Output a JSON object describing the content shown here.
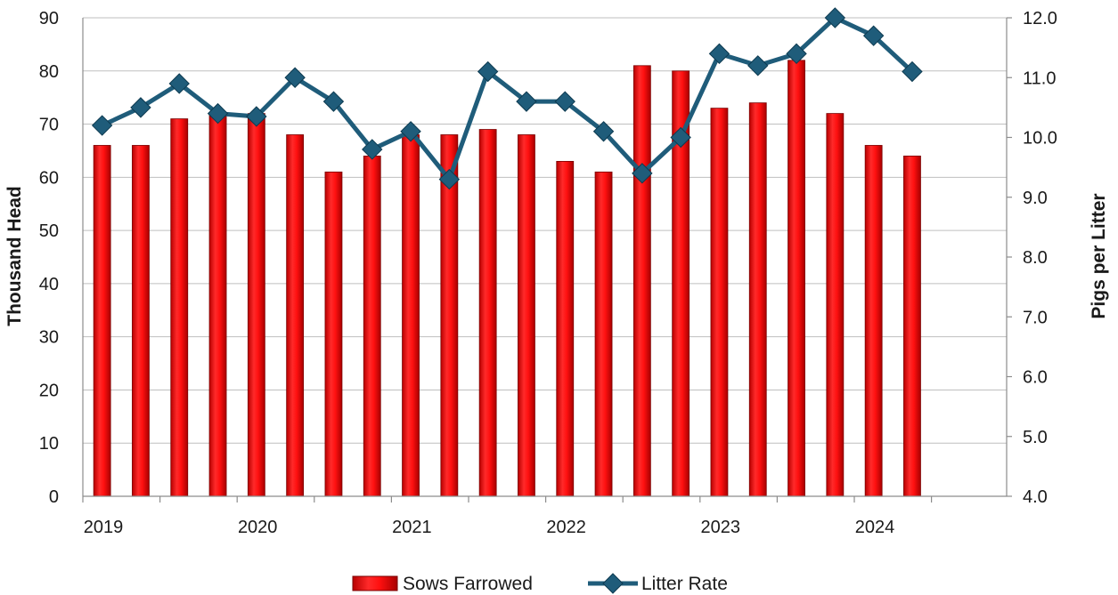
{
  "chart_data": {
    "type": "bar+line",
    "x_tick_labels": [
      "2019",
      "2020",
      "2021",
      "2022",
      "2023",
      "2024"
    ],
    "y_left": {
      "label": "Thousand Head",
      "lim": [
        0,
        90
      ],
      "ticks": [
        "0",
        "10",
        "20",
        "30",
        "40",
        "50",
        "60",
        "70",
        "80",
        "90"
      ]
    },
    "y_right": {
      "label": "Pigs per Litter",
      "lim": [
        4.0,
        12.0
      ],
      "ticks": [
        "4.0",
        "5.0",
        "6.0",
        "7.0",
        "8.0",
        "9.0",
        "10.0",
        "11.0",
        "12.0"
      ]
    },
    "grid": "horizontal",
    "legend_position": "bottom",
    "series": [
      {
        "name": "Sows Farrowed",
        "type": "bar",
        "axis": "left",
        "color": "#ee1111",
        "values": [
          66,
          66,
          71,
          72,
          72,
          68,
          61,
          64,
          68,
          68,
          69,
          68,
          63,
          61,
          81,
          80,
          73,
          74,
          82,
          72,
          66,
          64
        ]
      },
      {
        "name": "Litter Rate",
        "type": "line",
        "axis": "right",
        "color": "#1f5c7a",
        "marker": "diamond",
        "values": [
          10.2,
          10.5,
          10.9,
          10.4,
          10.35,
          11.0,
          10.6,
          9.8,
          10.1,
          9.3,
          11.1,
          10.6,
          10.6,
          10.1,
          9.4,
          10.0,
          11.4,
          11.2,
          11.4,
          12.0,
          11.7,
          11.1
        ]
      }
    ]
  }
}
